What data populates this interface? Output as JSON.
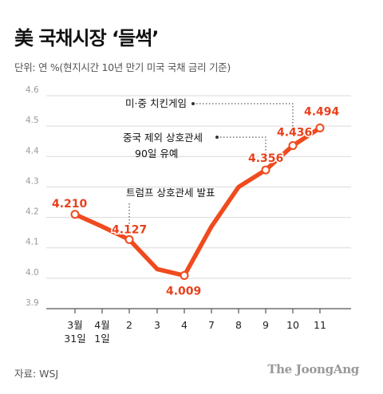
{
  "title": "美 국채시장 ‘들썩’",
  "subtitle": "단위: 연 %(현지시간 10년 만기 미국 국채 금리 기준)",
  "source": "자료: WSJ",
  "brand": "The JoongAng",
  "colors": {
    "line": "#f04a1e",
    "label": "#e8401c",
    "grid": "#d9d9d9",
    "axis": "#555555"
  },
  "chart_data": {
    "type": "line",
    "title": "美 국채시장 ‘들썩’",
    "ylabel": "단위: 연 %",
    "ylim": [
      3.9,
      4.6
    ],
    "yticks": [
      "3.9",
      "4.0",
      "4.1",
      "4.2",
      "4.3",
      "4.4",
      "4.5",
      "4.6"
    ],
    "grid": true,
    "categories": [
      {
        "line1": "3월",
        "line2": "31일"
      },
      {
        "line1": "4월",
        "line2": "1일"
      },
      {
        "line1": "2",
        "line2": ""
      },
      {
        "line1": "3",
        "line2": ""
      },
      {
        "line1": "4",
        "line2": ""
      },
      {
        "line1": "7",
        "line2": ""
      },
      {
        "line1": "8",
        "line2": ""
      },
      {
        "line1": "9",
        "line2": ""
      },
      {
        "line1": "10",
        "line2": ""
      },
      {
        "line1": "11",
        "line2": ""
      }
    ],
    "values": [
      4.21,
      4.17,
      4.127,
      4.03,
      4.009,
      4.17,
      4.3,
      4.356,
      4.436,
      4.494
    ],
    "data_labels": [
      {
        "index": 0,
        "text": "4.210"
      },
      {
        "index": 2,
        "text": "4.127"
      },
      {
        "index": 4,
        "text": "4.009"
      },
      {
        "index": 7,
        "text": "4.356"
      },
      {
        "index": 8,
        "text": "4.436"
      },
      {
        "index": 9,
        "text": "4.494"
      }
    ],
    "annotations": [
      {
        "index": 2,
        "lines": [
          "트럼프 상호관세 발표"
        ]
      },
      {
        "index": 7,
        "lines": [
          "중국 제외 상호관세",
          "90일 유예"
        ]
      },
      {
        "index": 8,
        "lines": [
          "미·중 치킨게임"
        ]
      }
    ]
  }
}
